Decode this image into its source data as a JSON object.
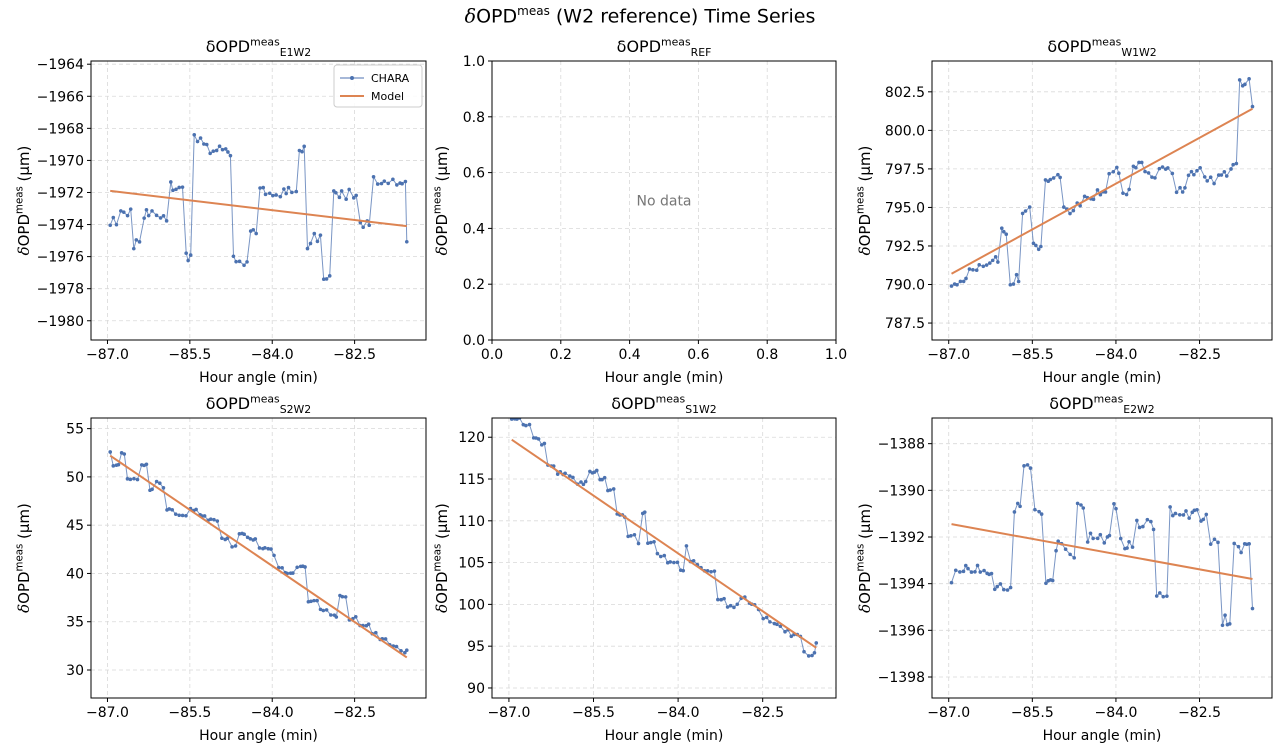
{
  "figure": {
    "title_prefix": "δ",
    "title_main": "OPD",
    "title_sup": "meas",
    "title_suffix": " (W2 reference) Time Series"
  },
  "colors": {
    "data": "#4c72b0",
    "model": "#dd8452",
    "grid": "#d9d9d9"
  },
  "common": {
    "xlabel": "Hour angle (min)",
    "ylabel_prefix": "δ",
    "ylabel_main": "OPD",
    "ylabel_sup": "meas",
    "ylabel_unit": "(μm)",
    "legend": {
      "series_label": "CHARA",
      "model_label": "Model",
      "location": "upper right"
    }
  },
  "chart_data": [
    {
      "type": "line",
      "title_main": "δOPD",
      "title_sup": "meas",
      "title_sub": "E1W2",
      "xlim": [
        -87.3,
        -81.2
      ],
      "ylim": [
        -1981.2,
        -1963.8
      ],
      "xticks": [
        -87.0,
        -85.5,
        -84.0,
        -82.5
      ],
      "xtick_labels": [
        "−87.0",
        "−85.5",
        "−84.0",
        "−82.5"
      ],
      "yticks": [
        -1980,
        -1978,
        -1976,
        -1974,
        -1972,
        -1970,
        -1968,
        -1966,
        -1964
      ],
      "ytick_labels": [
        "−1980",
        "−1978",
        "−1976",
        "−1974",
        "−1972",
        "−1970",
        "−1968",
        "−1966",
        "−1964"
      ],
      "model": {
        "x": [
          -86.95,
          -81.55
        ],
        "y": [
          -1971.9,
          -1974.1
        ]
      },
      "series": {
        "name": "CHARA",
        "x": [],
        "y": []
      },
      "legend": true
    },
    {
      "type": "empty",
      "title_main": "δOPD",
      "title_sup": "meas",
      "title_sub": "REF",
      "xlim": [
        0,
        1
      ],
      "ylim": [
        0,
        1
      ],
      "xticks": [
        0,
        0.2,
        0.4,
        0.6,
        0.8,
        1.0
      ],
      "xtick_labels": [
        "0.0",
        "0.2",
        "0.4",
        "0.6",
        "0.8",
        "1.0"
      ],
      "yticks": [
        0,
        0.2,
        0.4,
        0.6,
        0.8,
        1.0
      ],
      "ytick_labels": [
        "0.0",
        "0.2",
        "0.4",
        "0.6",
        "0.8",
        "1.0"
      ],
      "no_data_text": "No data",
      "grid": true
    },
    {
      "type": "line",
      "title_main": "δOPD",
      "title_sup": "meas",
      "title_sub": "W1W2",
      "xlim": [
        -87.3,
        -81.2
      ],
      "ylim": [
        786.4,
        804.5
      ],
      "xticks": [
        -87.0,
        -85.5,
        -84.0,
        -82.5
      ],
      "xtick_labels": [
        "−87.0",
        "−85.5",
        "−84.0",
        "−82.5"
      ],
      "yticks": [
        787.5,
        790.0,
        792.5,
        795.0,
        797.5,
        800.0,
        802.5
      ],
      "ytick_labels": [
        "787.5",
        "790.0",
        "792.5",
        "795.0",
        "797.5",
        "800.0",
        "802.5"
      ],
      "model": {
        "x": [
          -86.95,
          -81.55
        ],
        "y": [
          790.7,
          801.4
        ]
      },
      "series": {
        "name": "CHARA",
        "x": [],
        "y": []
      }
    },
    {
      "type": "line",
      "title_main": "δOPD",
      "title_sup": "meas",
      "title_sub": "S2W2",
      "xlim": [
        -87.3,
        -81.2
      ],
      "ylim": [
        27.1,
        56.1
      ],
      "xticks": [
        -87.0,
        -85.5,
        -84.0,
        -82.5
      ],
      "xtick_labels": [
        "−87.0",
        "−85.5",
        "−84.0",
        "−82.5"
      ],
      "yticks": [
        30,
        35,
        40,
        45,
        50,
        55
      ],
      "ytick_labels": [
        "30",
        "35",
        "40",
        "45",
        "50",
        "55"
      ],
      "model": {
        "x": [
          -86.95,
          -81.55
        ],
        "y": [
          52.2,
          31.3
        ]
      },
      "series": {
        "name": "CHARA",
        "x": [],
        "y": []
      }
    },
    {
      "type": "line",
      "title_main": "δOPD",
      "title_sup": "meas",
      "title_sub": "S1W2",
      "xlim": [
        -87.3,
        -81.2
      ],
      "ylim": [
        88.8,
        122.3
      ],
      "xticks": [
        -87.0,
        -85.5,
        -84.0,
        -82.5
      ],
      "xtick_labels": [
        "−87.0",
        "−85.5",
        "−84.0",
        "−82.5"
      ],
      "yticks": [
        90,
        95,
        100,
        105,
        110,
        115,
        120
      ],
      "ytick_labels": [
        "90",
        "95",
        "100",
        "105",
        "110",
        "115",
        "120"
      ],
      "model": {
        "x": [
          -86.95,
          -81.55
        ],
        "y": [
          119.7,
          94.8
        ]
      },
      "series": {
        "name": "CHARA",
        "x": [],
        "y": []
      }
    },
    {
      "type": "line",
      "title_main": "δOPD",
      "title_sup": "meas",
      "title_sub": "E2W2",
      "xlim": [
        -87.3,
        -81.2
      ],
      "ylim": [
        -1398.9,
        -1386.9
      ],
      "xticks": [
        -87.0,
        -85.5,
        -84.0,
        -82.5
      ],
      "xtick_labels": [
        "−87.0",
        "−85.5",
        "−84.0",
        "−82.5"
      ],
      "yticks": [
        -1398,
        -1396,
        -1394,
        -1392,
        -1390,
        -1388
      ],
      "ytick_labels": [
        "−1398",
        "−1396",
        "−1394",
        "−1392",
        "−1390",
        "−1388"
      ],
      "model": {
        "x": [
          -86.95,
          -81.55
        ],
        "y": [
          -1391.45,
          -1393.8
        ]
      },
      "series": {
        "name": "CHARA",
        "x": [],
        "y": []
      }
    }
  ]
}
